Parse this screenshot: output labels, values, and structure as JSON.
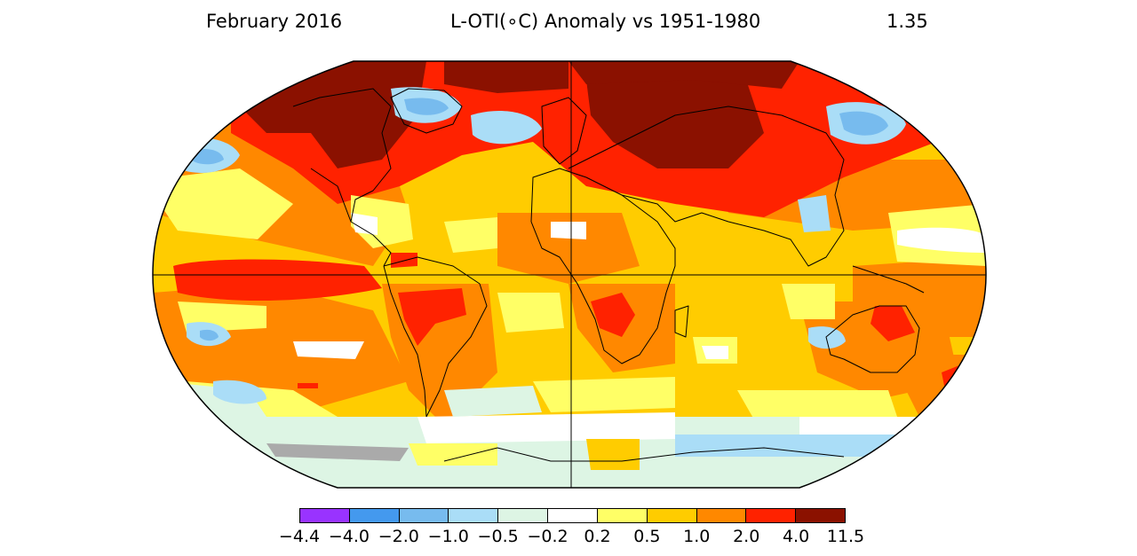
{
  "header": {
    "date": "February 2016",
    "title": "L-OTI(∘C) Anomaly vs 1951-1980",
    "global_value": "1.35"
  },
  "legend": {
    "bins": [
      {
        "color": "#9933ff"
      },
      {
        "color": "#4499ee"
      },
      {
        "color": "#77bbee"
      },
      {
        "color": "#aaddf7"
      },
      {
        "color": "#ddf5e4"
      },
      {
        "color": "#ffffff"
      },
      {
        "color": "#ffff66"
      },
      {
        "color": "#ffcc00"
      },
      {
        "color": "#ff8800"
      },
      {
        "color": "#ff2200"
      },
      {
        "color": "#8b1100"
      }
    ],
    "ticks": [
      "−4.4",
      "−4.0",
      "−2.0",
      "−1.0",
      "−0.5",
      "−0.2",
      "0.2",
      "0.5",
      "1.0",
      "2.0",
      "4.0",
      "11.5"
    ]
  }
}
